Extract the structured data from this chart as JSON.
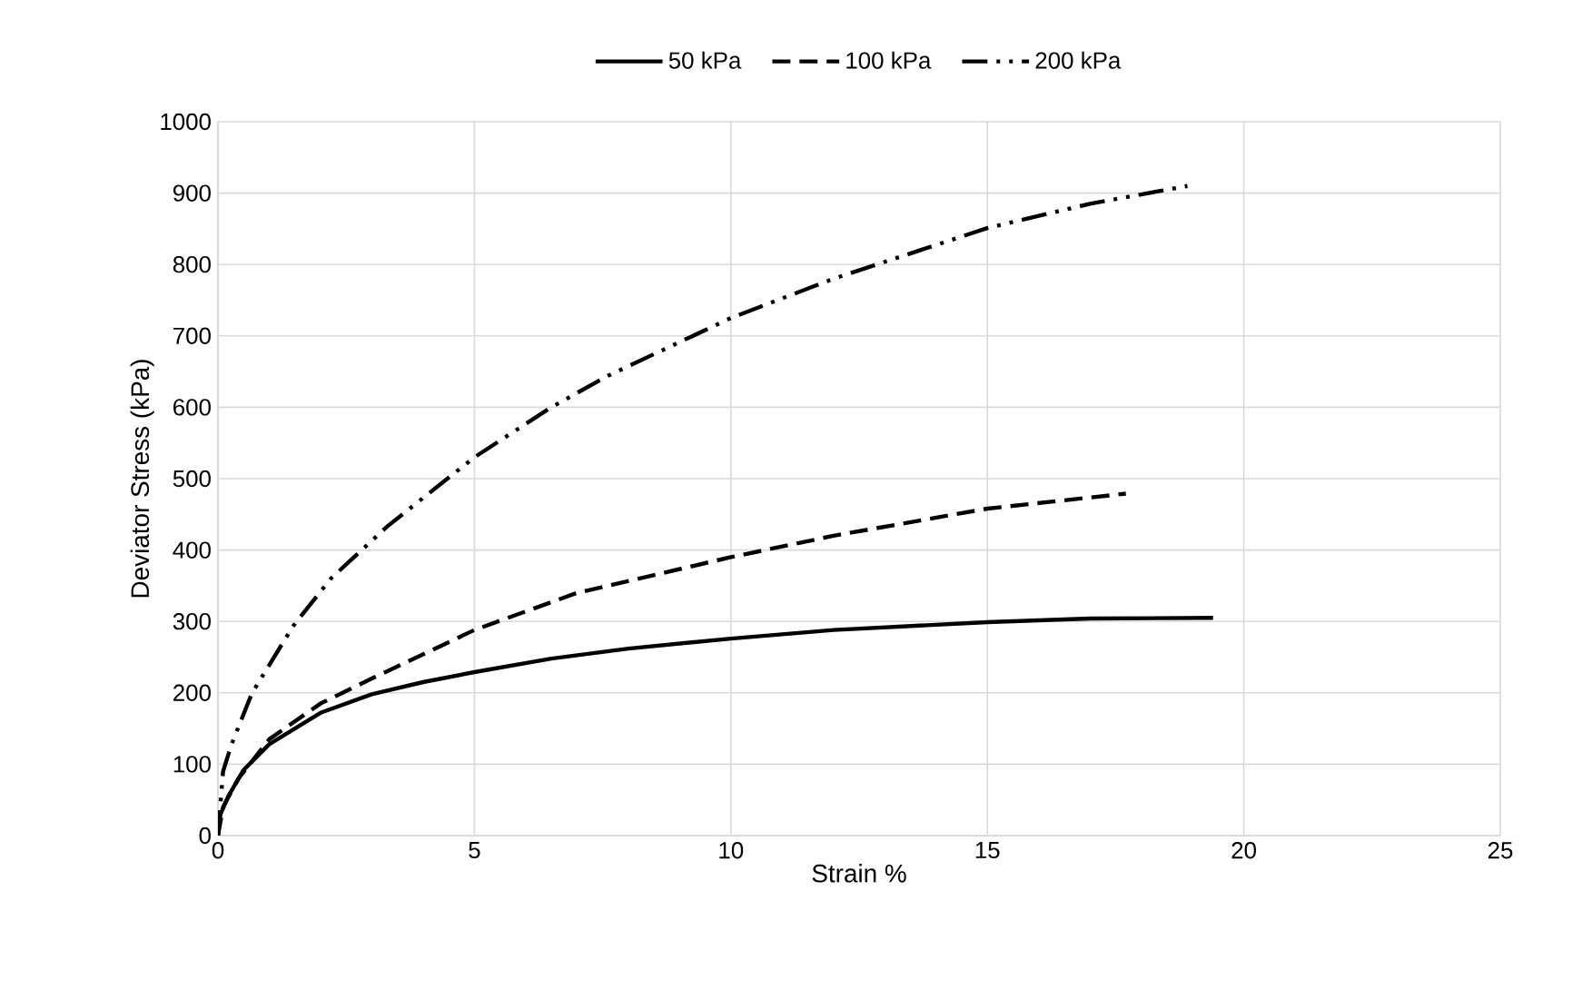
{
  "chart_data": {
    "type": "line",
    "xlabel": "Strain %",
    "ylabel": "Deviator Stress (kPa)",
    "xlim": [
      0,
      25
    ],
    "xticks": [
      0,
      5,
      10,
      15,
      20,
      25
    ],
    "ylim": [
      0,
      1000
    ],
    "yticks": [
      0,
      100,
      200,
      300,
      400,
      500,
      600,
      700,
      800,
      900,
      1000
    ],
    "grid": true,
    "legend": "top",
    "marker": "none",
    "series": [
      {
        "name": "50 kPa",
        "color": "#000000",
        "line_style": "solid",
        "x": [
          0,
          0.05,
          0.2,
          0.5,
          1,
          2,
          3,
          4,
          5,
          6.5,
          8,
          10,
          12,
          15,
          17,
          19.4
        ],
        "values": [
          0,
          30,
          55,
          92,
          128,
          172,
          198,
          215,
          229,
          248,
          262,
          276,
          288,
          299,
          304,
          305
        ]
      },
      {
        "name": "100 kPa",
        "color": "#000000",
        "line_style": "dashed",
        "x": [
          0,
          0.1,
          0.4,
          1,
          2,
          3,
          5,
          7,
          10,
          12,
          15,
          17.7
        ],
        "values": [
          0,
          40,
          80,
          135,
          185,
          220,
          288,
          340,
          390,
          420,
          458,
          479
        ]
      },
      {
        "name": "200 kPa",
        "color": "#000000",
        "line_style": "dashdotdot",
        "x": [
          0,
          0.1,
          0.26,
          0.66,
          1.46,
          2.2,
          3.3,
          5,
          6.5,
          7.6,
          10,
          12,
          15,
          17,
          18.9
        ],
        "values": [
          0,
          90,
          127,
          199,
          293,
          360,
          433,
          530,
          600,
          644,
          725,
          780,
          851,
          885,
          910
        ]
      }
    ]
  }
}
